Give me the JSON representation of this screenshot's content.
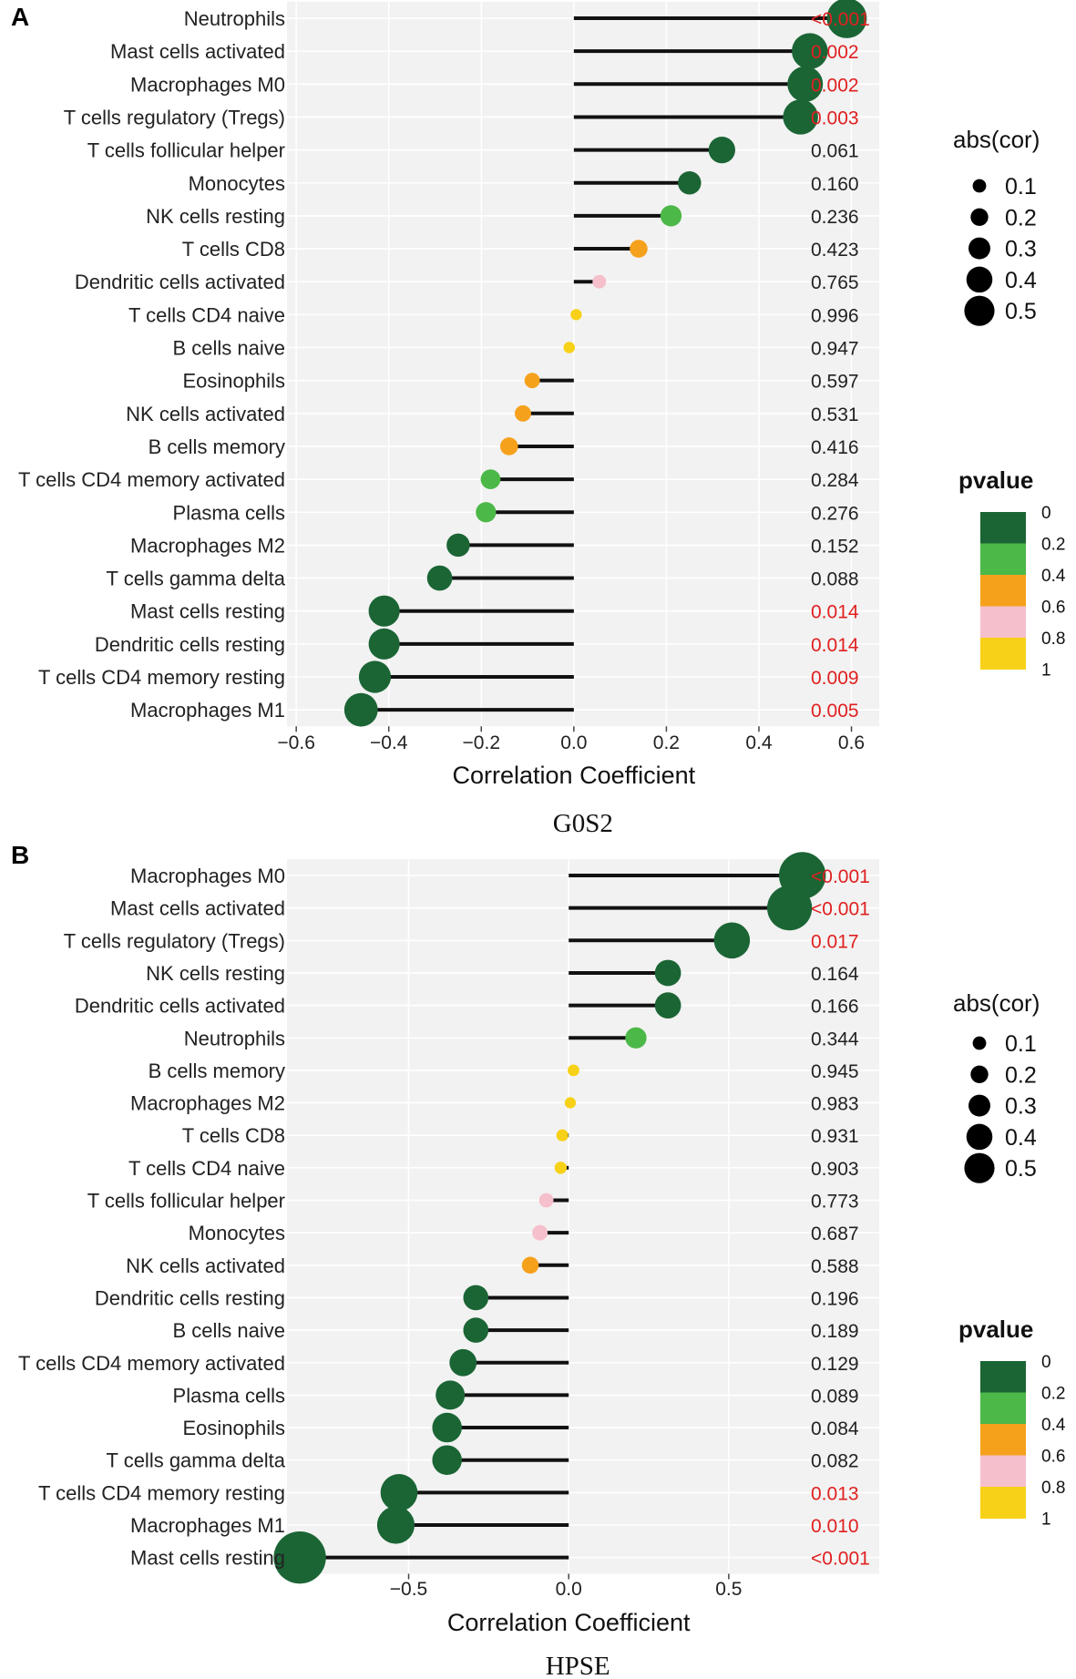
{
  "colors": {
    "green_dark": "#1b6535",
    "green_light": "#4cb848",
    "orange": "#f5a11c",
    "pink": "#f6bfcc",
    "yellow": "#f7d117",
    "sig_red": "#e02020",
    "panel_bg": "#f2f2f2"
  },
  "size_legend": {
    "title": "abs(cor)",
    "values": [
      0.1,
      0.2,
      0.3,
      0.4,
      0.5
    ],
    "labels": [
      "0.1",
      "0.2",
      "0.3",
      "0.4",
      "0.5"
    ]
  },
  "pvalue_legend": {
    "title": "pvalue",
    "ticks": [
      "0",
      "0.2",
      "0.4",
      "0.6",
      "0.8",
      "1"
    ]
  },
  "chart_data": [
    {
      "panel": "A",
      "type": "lollipop",
      "title": "G0S2",
      "xlabel": "Correlation Coefficient",
      "xlim": [
        -0.62,
        0.66
      ],
      "xticks": [
        -0.6,
        -0.4,
        -0.2,
        0.0,
        0.2,
        0.4,
        0.6
      ],
      "xtick_labels": [
        "−0.6",
        "−0.4",
        "−0.2",
        "0.0",
        "0.2",
        "0.4",
        "0.6"
      ],
      "grid": true,
      "rows": [
        {
          "cell": "Neutrophils",
          "cor": 0.59,
          "pvalue": 0.0005,
          "pvalue_text": "<0.001"
        },
        {
          "cell": "Mast cells activated",
          "cor": 0.51,
          "pvalue": 0.002,
          "pvalue_text": "0.002"
        },
        {
          "cell": "Macrophages M0",
          "cor": 0.5,
          "pvalue": 0.002,
          "pvalue_text": "0.002"
        },
        {
          "cell": "T cells regulatory (Tregs)",
          "cor": 0.49,
          "pvalue": 0.003,
          "pvalue_text": "0.003"
        },
        {
          "cell": "T cells follicular helper",
          "cor": 0.32,
          "pvalue": 0.061,
          "pvalue_text": "0.061"
        },
        {
          "cell": "Monocytes",
          "cor": 0.25,
          "pvalue": 0.16,
          "pvalue_text": "0.160"
        },
        {
          "cell": "NK cells resting",
          "cor": 0.21,
          "pvalue": 0.236,
          "pvalue_text": "0.236"
        },
        {
          "cell": "T cells CD8",
          "cor": 0.14,
          "pvalue": 0.423,
          "pvalue_text": "0.423"
        },
        {
          "cell": "Dendritic cells activated",
          "cor": 0.055,
          "pvalue": 0.765,
          "pvalue_text": "0.765"
        },
        {
          "cell": "T cells CD4 naive",
          "cor": 0.005,
          "pvalue": 0.996,
          "pvalue_text": "0.996"
        },
        {
          "cell": "B cells naive",
          "cor": -0.01,
          "pvalue": 0.947,
          "pvalue_text": "0.947"
        },
        {
          "cell": "Eosinophils",
          "cor": -0.09,
          "pvalue": 0.597,
          "pvalue_text": "0.597"
        },
        {
          "cell": "NK cells activated",
          "cor": -0.11,
          "pvalue": 0.531,
          "pvalue_text": "0.531"
        },
        {
          "cell": "B cells memory",
          "cor": -0.14,
          "pvalue": 0.416,
          "pvalue_text": "0.416"
        },
        {
          "cell": "T cells CD4 memory activated",
          "cor": -0.18,
          "pvalue": 0.284,
          "pvalue_text": "0.284"
        },
        {
          "cell": "Plasma cells",
          "cor": -0.19,
          "pvalue": 0.276,
          "pvalue_text": "0.276"
        },
        {
          "cell": "Macrophages M2",
          "cor": -0.25,
          "pvalue": 0.152,
          "pvalue_text": "0.152"
        },
        {
          "cell": "T cells gamma delta",
          "cor": -0.29,
          "pvalue": 0.088,
          "pvalue_text": "0.088"
        },
        {
          "cell": "Mast cells resting",
          "cor": -0.41,
          "pvalue": 0.014,
          "pvalue_text": "0.014"
        },
        {
          "cell": "Dendritic cells resting",
          "cor": -0.41,
          "pvalue": 0.014,
          "pvalue_text": "0.014"
        },
        {
          "cell": "T cells CD4 memory resting",
          "cor": -0.43,
          "pvalue": 0.009,
          "pvalue_text": "0.009"
        },
        {
          "cell": "Macrophages M1",
          "cor": -0.46,
          "pvalue": 0.005,
          "pvalue_text": "0.005"
        }
      ]
    },
    {
      "panel": "B",
      "type": "lollipop",
      "title": "HPSE",
      "xlabel": "Correlation Coefficient",
      "xlim": [
        -0.88,
        0.97
      ],
      "xticks": [
        -0.5,
        0.0,
        0.5
      ],
      "xtick_labels": [
        "−0.5",
        "0.0",
        "0.5"
      ],
      "grid": true,
      "rows": [
        {
          "cell": "Macrophages M0",
          "cor": 0.73,
          "pvalue": 0.0005,
          "pvalue_text": "<0.001"
        },
        {
          "cell": "Mast cells activated",
          "cor": 0.69,
          "pvalue": 0.0005,
          "pvalue_text": "<0.001"
        },
        {
          "cell": "T cells regulatory (Tregs)",
          "cor": 0.51,
          "pvalue": 0.017,
          "pvalue_text": "0.017"
        },
        {
          "cell": "NK cells resting",
          "cor": 0.31,
          "pvalue": 0.164,
          "pvalue_text": "0.164"
        },
        {
          "cell": "Dendritic cells activated",
          "cor": 0.31,
          "pvalue": 0.166,
          "pvalue_text": "0.166"
        },
        {
          "cell": "Neutrophils",
          "cor": 0.21,
          "pvalue": 0.344,
          "pvalue_text": "0.344"
        },
        {
          "cell": "B cells memory",
          "cor": 0.015,
          "pvalue": 0.945,
          "pvalue_text": "0.945"
        },
        {
          "cell": "Macrophages M2",
          "cor": 0.005,
          "pvalue": 0.983,
          "pvalue_text": "0.983"
        },
        {
          "cell": "T cells CD8",
          "cor": -0.02,
          "pvalue": 0.931,
          "pvalue_text": "0.931"
        },
        {
          "cell": "T cells CD4 naive",
          "cor": -0.025,
          "pvalue": 0.903,
          "pvalue_text": "0.903"
        },
        {
          "cell": "T cells follicular helper",
          "cor": -0.07,
          "pvalue": 0.773,
          "pvalue_text": "0.773"
        },
        {
          "cell": "Monocytes",
          "cor": -0.09,
          "pvalue": 0.687,
          "pvalue_text": "0.687"
        },
        {
          "cell": "NK cells activated",
          "cor": -0.12,
          "pvalue": 0.588,
          "pvalue_text": "0.588"
        },
        {
          "cell": "Dendritic cells resting",
          "cor": -0.29,
          "pvalue": 0.196,
          "pvalue_text": "0.196"
        },
        {
          "cell": "B cells naive",
          "cor": -0.29,
          "pvalue": 0.189,
          "pvalue_text": "0.189"
        },
        {
          "cell": "T cells CD4 memory activated",
          "cor": -0.33,
          "pvalue": 0.129,
          "pvalue_text": "0.129"
        },
        {
          "cell": "Plasma cells",
          "cor": -0.37,
          "pvalue": 0.089,
          "pvalue_text": "0.089"
        },
        {
          "cell": "Eosinophils",
          "cor": -0.38,
          "pvalue": 0.084,
          "pvalue_text": "0.084"
        },
        {
          "cell": "T cells gamma delta",
          "cor": -0.38,
          "pvalue": 0.082,
          "pvalue_text": "0.082"
        },
        {
          "cell": "T cells CD4 memory resting",
          "cor": -0.53,
          "pvalue": 0.013,
          "pvalue_text": "0.013"
        },
        {
          "cell": "Macrophages M1",
          "cor": -0.54,
          "pvalue": 0.01,
          "pvalue_text": "0.010"
        },
        {
          "cell": "Mast cells resting",
          "cor": -0.84,
          "pvalue": 0.0005,
          "pvalue_text": "<0.001"
        }
      ]
    }
  ]
}
